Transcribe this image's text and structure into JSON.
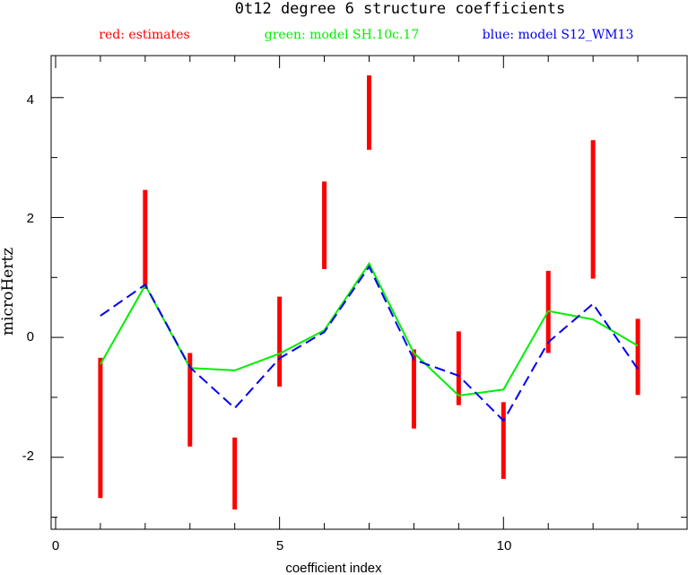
{
  "chart_data": {
    "type": "line",
    "title": "0t12 degree 6 structure coefficients",
    "xlabel": "coefficient index",
    "ylabel": "microHertz",
    "xlim": [
      -0.1,
      14.1
    ],
    "ylim": [
      -3.2,
      4.7
    ],
    "x_major_ticks": [
      0,
      5,
      10
    ],
    "x_minor_ticks": [
      1,
      2,
      3,
      4,
      6,
      7,
      8,
      9,
      11,
      12,
      13
    ],
    "x_tick_labels": [
      "0",
      "5",
      "10"
    ],
    "y_major_ticks": [
      -2,
      0,
      2,
      4
    ],
    "y_minor_ticks": [
      -3,
      -1,
      1,
      3
    ],
    "y_tick_labels": [
      "-2",
      "0",
      "2",
      "4"
    ],
    "grid": false,
    "legend_entries": [
      {
        "text": "red: estimates",
        "color": "#ff0000"
      },
      {
        "text": "green: model SH.10c.17",
        "color": "#00ee00"
      },
      {
        "text": "blue: model S12_WM13",
        "color": "#0000ee"
      }
    ],
    "legend_placement": "top",
    "series": [
      {
        "name": "estimates",
        "kind": "errorbar",
        "color": "#ff0000",
        "x": [
          1,
          2,
          3,
          4,
          5,
          6,
          7,
          8,
          9,
          10,
          11,
          12,
          13
        ],
        "low": [
          -2.68,
          0.81,
          -1.82,
          -2.87,
          -0.82,
          1.14,
          3.13,
          -1.52,
          -1.13,
          -2.36,
          -0.26,
          0.98,
          -0.96
        ],
        "high": [
          -0.34,
          2.46,
          -0.26,
          -1.67,
          0.68,
          2.6,
          4.37,
          -0.2,
          0.1,
          -1.08,
          1.11,
          3.29,
          0.31
        ]
      },
      {
        "name": "model SH.10c.17",
        "kind": "line",
        "color": "#00ee00",
        "x": [
          1,
          2,
          3,
          4,
          5,
          6,
          7,
          8,
          9,
          10,
          11,
          12,
          13
        ],
        "y": [
          -0.45,
          0.87,
          -0.51,
          -0.55,
          -0.27,
          0.12,
          1.23,
          -0.26,
          -0.97,
          -0.87,
          0.44,
          0.3,
          -0.14
        ]
      },
      {
        "name": "model S12_WM13",
        "kind": "dashed-line",
        "color": "#0000ee",
        "x": [
          1,
          2,
          3,
          4,
          5,
          6,
          7,
          8,
          9,
          10,
          11,
          12,
          13
        ],
        "y": [
          0.36,
          0.88,
          -0.5,
          -1.18,
          -0.35,
          0.09,
          1.18,
          -0.37,
          -0.64,
          -1.39,
          -0.08,
          0.56,
          -0.53
        ]
      }
    ]
  }
}
